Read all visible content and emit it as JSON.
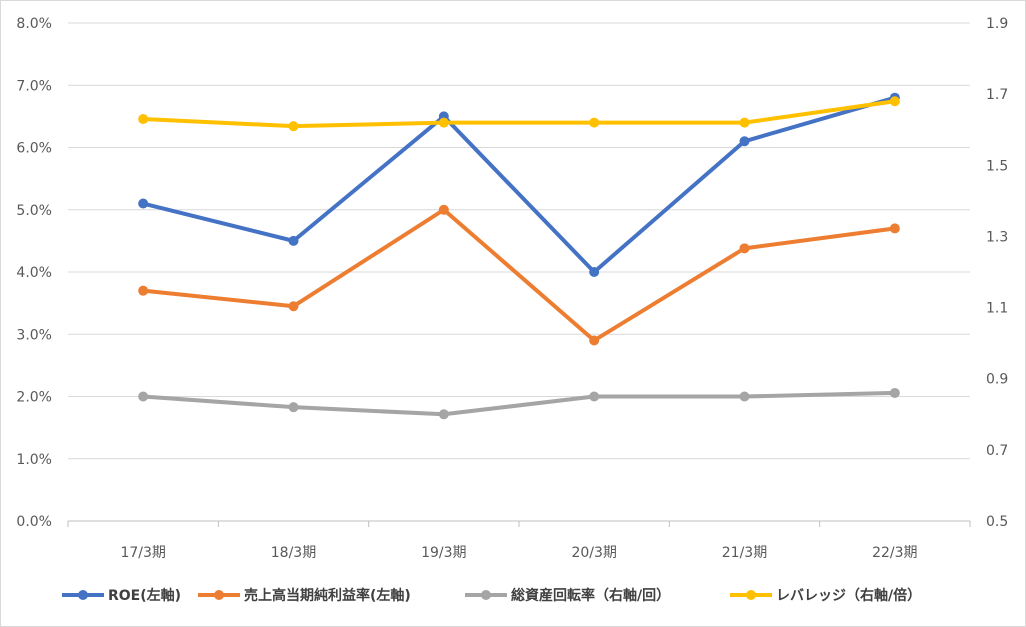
{
  "chart_data": {
    "type": "line",
    "categories": [
      "17/3期",
      "18/3期",
      "19/3期",
      "20/3期",
      "21/3期",
      "22/3期"
    ],
    "y_left": {
      "min": 0,
      "max": 0.08,
      "step": 0.01,
      "ticks": [
        "0.0%",
        "1.0%",
        "2.0%",
        "3.0%",
        "4.0%",
        "5.0%",
        "6.0%",
        "7.0%",
        "8.0%"
      ]
    },
    "y_right": {
      "min": 0.5,
      "max": 1.9,
      "step": 0.2,
      "ticks": [
        "0.5",
        "0.7",
        "0.9",
        "1.1",
        "1.3",
        "1.5",
        "1.7",
        "1.9"
      ]
    },
    "grid": true,
    "legend_position": "bottom",
    "series": [
      {
        "name": "ROE(左軸)",
        "axis": "left",
        "color": "#4472c4",
        "values": [
          0.051,
          0.045,
          0.065,
          0.04,
          0.061,
          0.068
        ]
      },
      {
        "name": "売上高当期純利益率(左軸)",
        "axis": "left",
        "color": "#ed7d31",
        "values": [
          0.037,
          0.0345,
          0.05,
          0.029,
          0.0438,
          0.047
        ]
      },
      {
        "name": "総資産回転率（右軸/回）",
        "axis": "right",
        "color": "#a5a5a5",
        "values": [
          0.85,
          0.82,
          0.8,
          0.85,
          0.85,
          0.86
        ]
      },
      {
        "name": "レバレッジ（右軸/倍）",
        "axis": "right",
        "color": "#ffc000",
        "values": [
          1.63,
          1.61,
          1.62,
          1.62,
          1.62,
          1.68
        ]
      }
    ]
  }
}
